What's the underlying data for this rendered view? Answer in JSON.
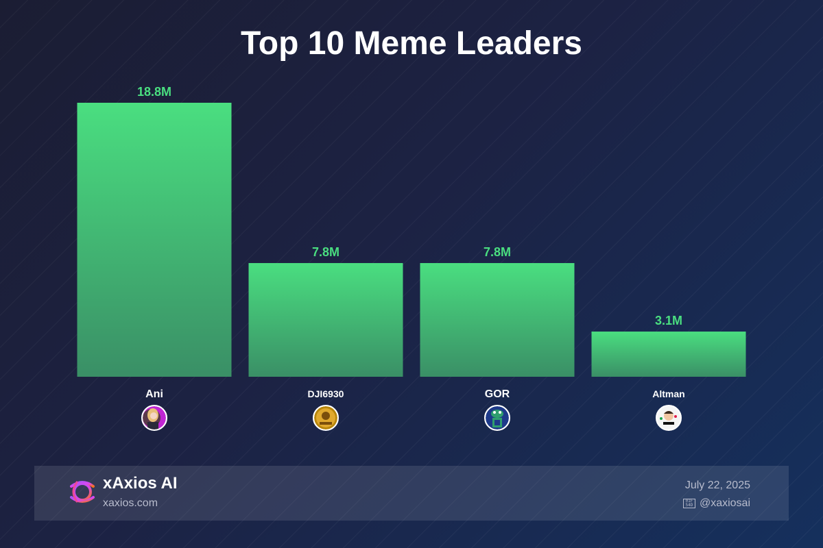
{
  "chart_data": {
    "type": "bar",
    "title": "Top 10 Meme Leaders",
    "categories": [
      "Ani",
      "DJI6930",
      "GOR",
      "Altman"
    ],
    "values": [
      18.8,
      7.8,
      7.8,
      3.1
    ],
    "value_labels": [
      "18.8M",
      "7.8M",
      "7.8M",
      "3.1M"
    ],
    "unit": "M",
    "ylim": [
      0,
      18.8
    ],
    "grid": false,
    "bar_gradient": [
      "#4ade80",
      "#3a8f66"
    ],
    "value_label_color": "#4ade80",
    "avatars": [
      "anime-girl-avatar",
      "gold-coin-avatar",
      "green-creature-avatar",
      "cartoon-man-avatar"
    ]
  },
  "footer": {
    "brand_name": "xAxios AI",
    "brand_url": "xaxios.com",
    "date": "July 22, 2025",
    "handle": "@xaxiosai",
    "handle_icon": "x-platform-icon"
  },
  "colors": {
    "accent": "#4ade80",
    "background_start": "#1b1d33",
    "background_end": "#15305d"
  }
}
